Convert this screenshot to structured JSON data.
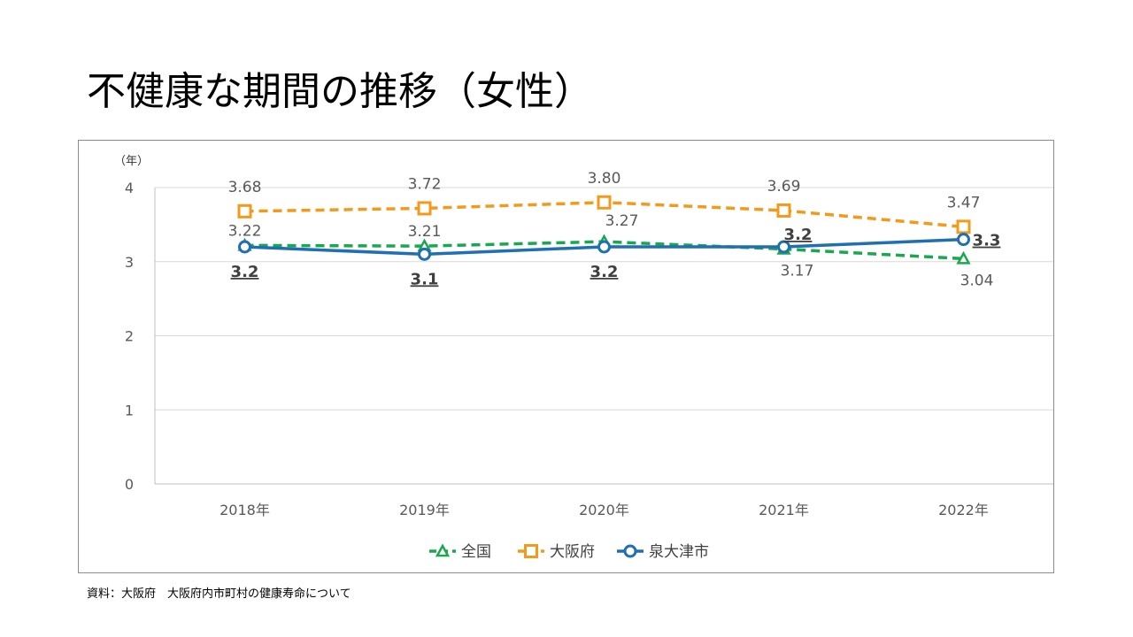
{
  "page": {
    "title": "不健康な期間の推移（女性）",
    "source": "資料：大阪府　大阪府内市町村の健康寿命について"
  },
  "chart_data": {
    "type": "line",
    "title": "",
    "unit_label": "（年）",
    "xlabel": "",
    "ylabel": "",
    "categories": [
      "2018年",
      "2019年",
      "2020年",
      "2021年",
      "2022年"
    ],
    "y_ticks": [
      "0",
      "1",
      "2",
      "3",
      "4"
    ],
    "ylim": [
      0,
      4
    ],
    "grid": true,
    "legend_position": "bottom",
    "series": [
      {
        "name": "全国",
        "values": [
          3.22,
          3.21,
          3.27,
          3.17,
          3.04
        ],
        "labels": [
          "3.22",
          "3.21",
          "3.27",
          "3.17",
          "3.04"
        ],
        "color": "#1aa84f",
        "style": "dashed",
        "marker": "triangle"
      },
      {
        "name": "大阪府",
        "values": [
          3.68,
          3.72,
          3.8,
          3.69,
          3.47
        ],
        "labels": [
          "3.68",
          "3.72",
          "3.80",
          "3.69",
          "3.47"
        ],
        "color": "#f29a1a",
        "style": "dashed",
        "marker": "square"
      },
      {
        "name": "泉大津市",
        "values": [
          3.2,
          3.1,
          3.2,
          3.2,
          3.3
        ],
        "labels": [
          "3.2",
          "3.1",
          "3.2",
          "3.2",
          "3.3"
        ],
        "color": "#1f6fb2",
        "style": "solid",
        "marker": "circle"
      }
    ]
  }
}
